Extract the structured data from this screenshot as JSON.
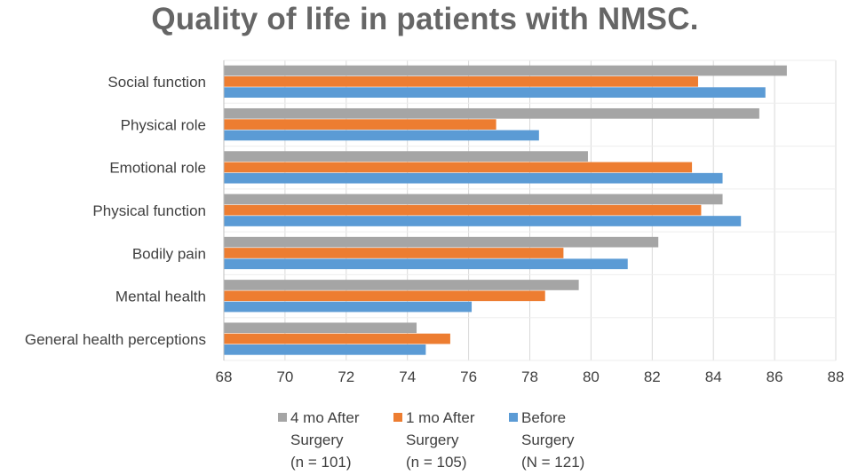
{
  "chart_data": {
    "type": "bar",
    "orientation": "horizontal",
    "title": "Quality of life in  patients with NMSC.",
    "categories": [
      "Social function",
      "Physical role",
      "Emotional role",
      "Physical function",
      "Bodily pain",
      "Mental health",
      "General health perceptions"
    ],
    "series": [
      {
        "name": "4 mo After Surgery (n = 101)",
        "legend_lines": [
          "4 mo After",
          "Surgery",
          "(n = 101)"
        ],
        "color": "#A5A5A5",
        "values": [
          86.4,
          85.5,
          79.9,
          84.3,
          82.2,
          79.6,
          74.3
        ]
      },
      {
        "name": "1 mo After Surgery (n = 105)",
        "legend_lines": [
          "1 mo After",
          "Surgery",
          "(n = 105)"
        ],
        "color": "#ED7D31",
        "values": [
          83.5,
          76.9,
          83.3,
          83.6,
          79.1,
          78.5,
          75.4
        ]
      },
      {
        "name": "Before Surgery (N = 121)",
        "legend_lines": [
          "Before",
          "Surgery",
          "(N = 121)"
        ],
        "color": "#5B9BD5",
        "values": [
          85.7,
          78.3,
          84.3,
          84.9,
          81.2,
          76.1,
          74.6
        ]
      }
    ],
    "xlim": [
      68,
      88
    ],
    "xticks": [
      "68",
      "70",
      "72",
      "74",
      "76",
      "78",
      "80",
      "82",
      "84",
      "86",
      "88"
    ],
    "xlabel": "",
    "ylabel": "",
    "grid": true,
    "legend_position": "bottom"
  }
}
